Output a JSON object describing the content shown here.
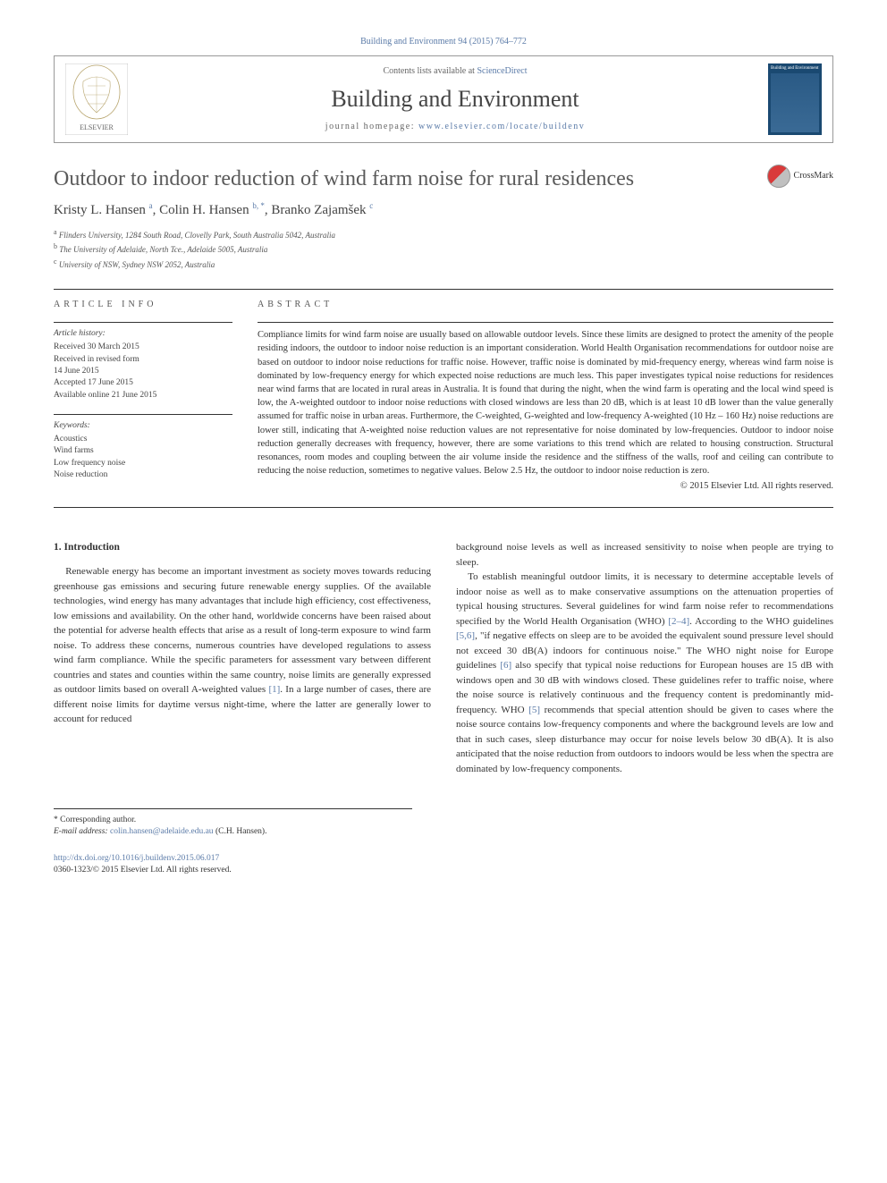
{
  "citation": "Building and Environment 94 (2015) 764–772",
  "header": {
    "contents_prefix": "Contents lists available at ",
    "contents_link": "ScienceDirect",
    "journal": "Building and Environment",
    "homepage_prefix": "journal homepage: ",
    "homepage_url": "www.elsevier.com/locate/buildenv",
    "cover_text_top": "Building and Environment"
  },
  "article": {
    "title": "Outdoor to indoor reduction of wind farm noise for rural residences",
    "crossmark_label": "CrossMark",
    "authors_html": "Kristy L. Hansen <sup>a</sup>, Colin H. Hansen <sup>b, *</sup>, Branko Zajamšek <sup>c</sup>",
    "affiliations": {
      "a": "Flinders University, 1284 South Road, Clovelly Park, South Australia 5042, Australia",
      "b": "The University of Adelaide, North Tce., Adelaide 5005, Australia",
      "c": "University of NSW, Sydney NSW 2052, Australia"
    }
  },
  "info": {
    "label": "ARTICLE INFO",
    "history_head": "Article history:",
    "history": [
      "Received 30 March 2015",
      "Received in revised form",
      "14 June 2015",
      "Accepted 17 June 2015",
      "Available online 21 June 2015"
    ],
    "keywords_head": "Keywords:",
    "keywords": [
      "Acoustics",
      "Wind farms",
      "Low frequency noise",
      "Noise reduction"
    ]
  },
  "abstract": {
    "label": "ABSTRACT",
    "text": "Compliance limits for wind farm noise are usually based on allowable outdoor levels. Since these limits are designed to protect the amenity of the people residing indoors, the outdoor to indoor noise reduction is an important consideration. World Health Organisation recommendations for outdoor noise are based on outdoor to indoor noise reductions for traffic noise. However, traffic noise is dominated by mid-frequency energy, whereas wind farm noise is dominated by low-frequency energy for which expected noise reductions are much less. This paper investigates typical noise reductions for residences near wind farms that are located in rural areas in Australia. It is found that during the night, when the wind farm is operating and the local wind speed is low, the A-weighted outdoor to indoor noise reductions with closed windows are less than 20 dB, which is at least 10 dB lower than the value generally assumed for traffic noise in urban areas. Furthermore, the C-weighted, G-weighted and low-frequency A-weighted (10 Hz – 160 Hz) noise reductions are lower still, indicating that A-weighted noise reduction values are not representative for noise dominated by low-frequencies. Outdoor to indoor noise reduction generally decreases with frequency, however, there are some variations to this trend which are related to housing construction. Structural resonances, room modes and coupling between the air volume inside the residence and the stiffness of the walls, roof and ceiling can contribute to reducing the noise reduction, sometimes to negative values. Below 2.5 Hz, the outdoor to indoor noise reduction is zero.",
    "copyright": "© 2015 Elsevier Ltd. All rights reserved."
  },
  "body": {
    "section_heading": "1. Introduction",
    "col1_p1": "Renewable energy has become an important investment as society moves towards reducing greenhouse gas emissions and securing future renewable energy supplies. Of the available technologies, wind energy has many advantages that include high efficiency, cost effectiveness, low emissions and availability. On the other hand, worldwide concerns have been raised about the potential for adverse health effects that arise as a result of long-term exposure to wind farm noise. To address these concerns, numerous countries have developed regulations to assess wind farm compliance. While the specific parameters for assessment vary between different countries and states and counties within the same country, noise limits are generally expressed as outdoor limits based on overall A-weighted values [1]. In a large number of cases, there are different noise limits for daytime versus night-time, where the latter are generally lower to account for reduced",
    "col2_p1": "background noise levels as well as increased sensitivity to noise when people are trying to sleep.",
    "col2_p2": "To establish meaningful outdoor limits, it is necessary to determine acceptable levels of indoor noise as well as to make conservative assumptions on the attenuation properties of typical housing structures. Several guidelines for wind farm noise refer to recommendations specified by the World Health Organisation (WHO) [2–4]. According to the WHO guidelines [5,6], \"if negative effects on sleep are to be avoided the equivalent sound pressure level should not exceed 30 dB(A) indoors for continuous noise.\" The WHO night noise for Europe guidelines [6] also specify that typical noise reductions for European houses are 15 dB with windows open and 30 dB with windows closed. These guidelines refer to traffic noise, where the noise source is relatively continuous and the frequency content is predominantly mid-frequency. WHO [5] recommends that special attention should be given to cases where the noise source contains low-frequency components and where the background levels are low and that in such cases, sleep disturbance may occur for noise levels below 30 dB(A). It is also anticipated that the noise reduction from outdoors to indoors would be less when the spectra are dominated by low-frequency components."
  },
  "footer": {
    "corresponding": "* Corresponding author.",
    "email_label": "E-mail address: ",
    "email": "colin.hansen@adelaide.edu.au",
    "email_suffix": " (C.H. Hansen).",
    "doi_url": "http://dx.doi.org/10.1016/j.buildenv.2015.06.017",
    "issn_line": "0360-1323/© 2015 Elsevier Ltd. All rights reserved."
  },
  "colors": {
    "link": "#5b7ba8",
    "text": "#333333",
    "heading": "#5a5a5a",
    "rule": "#333333",
    "cover_bg": "#1a4971"
  },
  "typography": {
    "base_font": "Georgia, 'Times New Roman', serif",
    "title_size_pt": 18,
    "journal_size_pt": 20,
    "body_size_pt": 8.5,
    "abstract_size_pt": 8,
    "small_size_pt": 7
  }
}
